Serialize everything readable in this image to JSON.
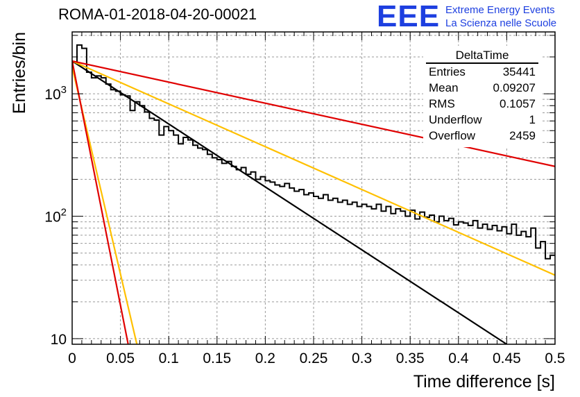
{
  "header": {
    "title": "ROMA-01-2018-04-20-00021",
    "logo_mark": "EEE",
    "logo_line1": "Extreme Energy Events",
    "logo_line2": "La Scienza nelle Scuole"
  },
  "stats": {
    "name": "DeltaTime",
    "rows": [
      {
        "label": "Entries",
        "value": "35441"
      },
      {
        "label": "Mean",
        "value": "0.09207"
      },
      {
        "label": "RMS",
        "value": "0.1057"
      },
      {
        "label": "Underflow",
        "value": "1"
      },
      {
        "label": "Overflow",
        "value": "2459"
      }
    ]
  },
  "chart_data": {
    "type": "histogram",
    "title": "ROMA-01-2018-04-20-00021",
    "xlabel": "Time difference [s]",
    "ylabel": "Entries/bin",
    "xlim": [
      0,
      0.5
    ],
    "ylim": [
      9,
      3200
    ],
    "log_y": true,
    "grid": true,
    "x_ticks": [
      {
        "v": 0,
        "label": "0"
      },
      {
        "v": 0.05,
        "label": "0.05"
      },
      {
        "v": 0.1,
        "label": "0.1"
      },
      {
        "v": 0.15,
        "label": "0.15"
      },
      {
        "v": 0.2,
        "label": "0.2"
      },
      {
        "v": 0.25,
        "label": "0.25"
      },
      {
        "v": 0.3,
        "label": "0.3"
      },
      {
        "v": 0.35,
        "label": "0.35"
      },
      {
        "v": 0.4,
        "label": "0.4"
      },
      {
        "v": 0.45,
        "label": "0.45"
      },
      {
        "v": 0.5,
        "label": "0.5"
      }
    ],
    "y_ticks": [
      {
        "v": 10,
        "label": "10"
      },
      {
        "v": 100,
        "label": "10",
        "sup": "2"
      },
      {
        "v": 1000,
        "label": "10",
        "sup": "3"
      }
    ],
    "histogram": {
      "bin_width": 0.005,
      "bin_start": 0,
      "counts": [
        1800,
        2500,
        2350,
        1500,
        1350,
        1400,
        1350,
        1200,
        1080,
        1050,
        980,
        960,
        730,
        860,
        800,
        710,
        630,
        610,
        460,
        540,
        500,
        460,
        390,
        440,
        420,
        380,
        360,
        350,
        320,
        300,
        290,
        270,
        280,
        255,
        240,
        250,
        220,
        230,
        200,
        210,
        195,
        190,
        180,
        175,
        185,
        170,
        160,
        165,
        150,
        155,
        145,
        140,
        150,
        135,
        140,
        130,
        135,
        125,
        130,
        120,
        125,
        120,
        115,
        125,
        110,
        120,
        105,
        115,
        110,
        100,
        112,
        95,
        108,
        98,
        102,
        90,
        100,
        92,
        96,
        85,
        90,
        88,
        84,
        92,
        80,
        86,
        78,
        84,
        76,
        82,
        72,
        86,
        70,
        75,
        68,
        80,
        55,
        62,
        45,
        48
      ]
    },
    "series": [
      {
        "color": "#000000",
        "x": [
          0,
          0.45
        ],
        "y": [
          1850,
          9
        ]
      },
      {
        "color": "#ffc000",
        "x": [
          0,
          0.5
        ],
        "y": [
          1850,
          33
        ]
      },
      {
        "color": "#ffc000",
        "x": [
          0,
          0.067
        ],
        "y": [
          1650,
          9
        ]
      },
      {
        "color": "#e00000",
        "x": [
          0,
          0.5
        ],
        "y": [
          1850,
          255
        ]
      },
      {
        "color": "#e00000",
        "x": [
          0,
          0.058
        ],
        "y": [
          1850,
          9
        ]
      }
    ]
  }
}
